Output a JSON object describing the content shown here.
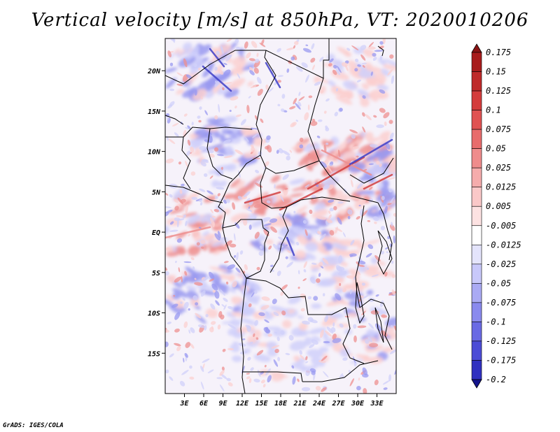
{
  "title": "Vertical velocity [m/s] at 850hPa, VT: 2020010206",
  "credit": "GrADS: IGES/COLA",
  "map": {
    "lon_range": [
      0,
      36
    ],
    "lat_range": [
      -20,
      24
    ],
    "lat_labels": [
      {
        "value": 20,
        "label": "20N"
      },
      {
        "value": 15,
        "label": "15N"
      },
      {
        "value": 10,
        "label": "10N"
      },
      {
        "value": 5,
        "label": "5N"
      },
      {
        "value": 0,
        "label": "EQ"
      },
      {
        "value": -5,
        "label": "5S"
      },
      {
        "value": -10,
        "label": "10S"
      },
      {
        "value": -15,
        "label": "15S"
      }
    ],
    "lon_labels": [
      {
        "value": 3,
        "label": "3E"
      },
      {
        "value": 6,
        "label": "6E"
      },
      {
        "value": 9,
        "label": "9E"
      },
      {
        "value": 12,
        "label": "12E"
      },
      {
        "value": 15,
        "label": "15E"
      },
      {
        "value": 18,
        "label": "18E"
      },
      {
        "value": 21,
        "label": "21E"
      },
      {
        "value": 24,
        "label": "24E"
      },
      {
        "value": 27,
        "label": "27E"
      },
      {
        "value": 30,
        "label": "30E"
      },
      {
        "value": 33,
        "label": "33E"
      }
    ]
  },
  "colorbar": {
    "levels": [
      {
        "label": "0.175",
        "color": "#a81c1c"
      },
      {
        "label": "0.15",
        "color": "#bf2a2a"
      },
      {
        "label": "0.125",
        "color": "#d43c3c"
      },
      {
        "label": "0.1",
        "color": "#e05252"
      },
      {
        "label": "0.075",
        "color": "#e86c6c"
      },
      {
        "label": "0.05",
        "color": "#ef8c8c"
      },
      {
        "label": "0.025",
        "color": "#f5acac"
      },
      {
        "label": "0.0125",
        "color": "#fac8c8"
      },
      {
        "label": "0.005",
        "color": "#fde2e2"
      },
      {
        "label": "-0.005",
        "color": "#ffffff"
      },
      {
        "label": "-0.0125",
        "color": "#e4e4fc"
      },
      {
        "label": "-0.025",
        "color": "#c8c8fa"
      },
      {
        "label": "-0.05",
        "color": "#aaaaf4"
      },
      {
        "label": "-0.075",
        "color": "#8a8aee"
      },
      {
        "label": "-0.1",
        "color": "#6a6ae4"
      },
      {
        "label": "-0.125",
        "color": "#4c4cd6"
      },
      {
        "label": "-0.175",
        "color": "#3030c0"
      },
      {
        "label": "-0.2",
        "color": "#1c1ca8"
      }
    ],
    "top_cap_color": "#8a1414",
    "bottom_cap_color": "#14148c"
  },
  "field_colors": {
    "strong_down": "#4040c8",
    "down": "#9a9af0",
    "weak_down": "#d0d0fa",
    "weak_up": "#fbd0d0",
    "up": "#ee9090",
    "strong_up": "#d24040"
  }
}
